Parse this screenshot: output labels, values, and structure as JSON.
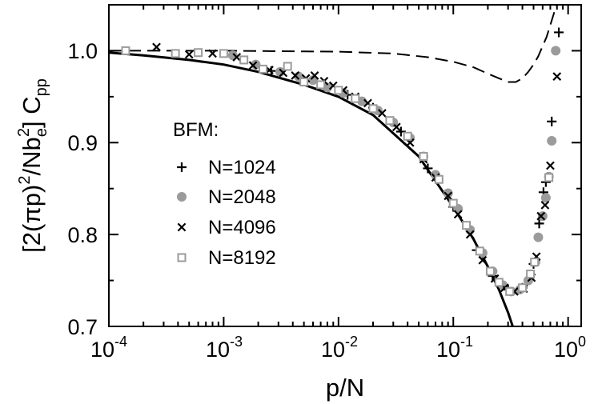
{
  "chart_data": {
    "type": "scatter",
    "xscale": "log",
    "xlim": [
      0.0001,
      1.3
    ],
    "ylim": [
      0.7,
      1.05
    ],
    "xlabel_parts": [
      "p/N"
    ],
    "ylabel": {
      "open": "[2(",
      "pi": "π",
      "p": "p)",
      "sup2a": "2",
      "slash": "/Nb",
      "sube": "e",
      "sup2b": "2",
      "close": "] C",
      "subpp": "pp"
    },
    "xticks": [
      {
        "value": 0.0001,
        "base": "10",
        "exp": "-4"
      },
      {
        "value": 0.001,
        "base": "10",
        "exp": "-3"
      },
      {
        "value": 0.01,
        "base": "10",
        "exp": "-2"
      },
      {
        "value": 0.1,
        "base": "10",
        "exp": "-1"
      },
      {
        "value": 1,
        "base": "10",
        "exp": "0"
      }
    ],
    "yticks": [
      {
        "value": 0.7,
        "label": "0.7"
      },
      {
        "value": 0.8,
        "label": "0.8"
      },
      {
        "value": 0.9,
        "label": "0.9"
      },
      {
        "value": 1.0,
        "label": "1.0"
      }
    ],
    "legend_title": "BFM:",
    "legend_position": "center-left",
    "series": [
      {
        "name": "N=1024",
        "marker": "plus",
        "color": "#000000",
        "points": [
          [
            0.0026,
            0.978
          ],
          [
            0.0045,
            0.972
          ],
          [
            0.0075,
            0.962
          ],
          [
            0.012,
            0.952
          ],
          [
            0.02,
            0.938
          ],
          [
            0.035,
            0.912
          ],
          [
            0.06,
            0.872
          ],
          [
            0.1,
            0.83
          ],
          [
            0.16,
            0.783
          ],
          [
            0.22,
            0.755
          ],
          [
            0.3,
            0.74
          ],
          [
            0.4,
            0.742
          ],
          [
            0.5,
            0.768
          ],
          [
            0.56,
            0.812
          ],
          [
            0.61,
            0.846
          ],
          [
            0.64,
            0.857
          ],
          [
            0.72,
            0.923
          ],
          [
            0.83,
            1.02
          ]
        ]
      },
      {
        "name": "N=2048",
        "marker": "circle",
        "color": "#9b9b9b",
        "points": [
          [
            0.0012,
            0.995
          ],
          [
            0.0019,
            0.985
          ],
          [
            0.0031,
            0.977
          ],
          [
            0.0045,
            0.972
          ],
          [
            0.006,
            0.968
          ],
          [
            0.008,
            0.96
          ],
          [
            0.011,
            0.954
          ],
          [
            0.016,
            0.945
          ],
          [
            0.022,
            0.935
          ],
          [
            0.03,
            0.922
          ],
          [
            0.042,
            0.905
          ],
          [
            0.055,
            0.885
          ],
          [
            0.07,
            0.865
          ],
          [
            0.09,
            0.845
          ],
          [
            0.11,
            0.828
          ],
          [
            0.14,
            0.805
          ],
          [
            0.18,
            0.78
          ],
          [
            0.22,
            0.76
          ],
          [
            0.27,
            0.745
          ],
          [
            0.32,
            0.738
          ],
          [
            0.38,
            0.74
          ],
          [
            0.45,
            0.75
          ],
          [
            0.52,
            0.77
          ],
          [
            0.55,
            0.797
          ],
          [
            0.6,
            0.82
          ],
          [
            0.64,
            0.84
          ],
          [
            0.68,
            0.863
          ],
          [
            0.72,
            0.902
          ],
          [
            0.78,
            1.0
          ]
        ]
      },
      {
        "name": "N=4096",
        "marker": "cross",
        "color": "#000000",
        "points": [
          [
            0.00026,
            1.004
          ],
          [
            0.0005,
            0.996
          ],
          [
            0.0008,
            0.997
          ],
          [
            0.0013,
            0.993
          ],
          [
            0.0018,
            0.984
          ],
          [
            0.0025,
            0.979
          ],
          [
            0.0033,
            0.976
          ],
          [
            0.0042,
            0.973
          ],
          [
            0.0052,
            0.97
          ],
          [
            0.0062,
            0.973
          ],
          [
            0.0075,
            0.967
          ],
          [
            0.009,
            0.962
          ],
          [
            0.011,
            0.957
          ],
          [
            0.014,
            0.95
          ],
          [
            0.018,
            0.943
          ],
          [
            0.024,
            0.932
          ],
          [
            0.032,
            0.917
          ],
          [
            0.042,
            0.9
          ],
          [
            0.055,
            0.882
          ],
          [
            0.07,
            0.862
          ],
          [
            0.09,
            0.842
          ],
          [
            0.11,
            0.822
          ],
          [
            0.14,
            0.8
          ],
          [
            0.18,
            0.772
          ],
          [
            0.23,
            0.752
          ],
          [
            0.28,
            0.742
          ],
          [
            0.34,
            0.738
          ],
          [
            0.41,
            0.741
          ],
          [
            0.48,
            0.753
          ],
          [
            0.53,
            0.776
          ],
          [
            0.58,
            0.82
          ],
          [
            0.63,
            0.832
          ],
          [
            0.7,
            0.875
          ],
          [
            0.8,
            0.972
          ]
        ]
      },
      {
        "name": "N=8192",
        "marker": "square",
        "color": "#9b9b9b",
        "points": [
          [
            0.00014,
            1.0
          ],
          [
            0.00038,
            0.997
          ],
          [
            0.0006,
            0.998
          ],
          [
            0.001,
            0.997
          ],
          [
            0.0015,
            0.99
          ],
          [
            0.0022,
            0.98
          ],
          [
            0.0036,
            0.983
          ],
          [
            0.005,
            0.966
          ],
          [
            0.007,
            0.963
          ],
          [
            0.01,
            0.957
          ],
          [
            0.014,
            0.948
          ],
          [
            0.02,
            0.937
          ],
          [
            0.028,
            0.924
          ],
          [
            0.04,
            0.907
          ],
          [
            0.055,
            0.885
          ],
          [
            0.075,
            0.86
          ],
          [
            0.1,
            0.834
          ],
          [
            0.13,
            0.81
          ],
          [
            0.17,
            0.782
          ],
          [
            0.21,
            0.76
          ],
          [
            0.25,
            0.748
          ],
          [
            0.31,
            0.738
          ],
          [
            0.4,
            0.742
          ],
          [
            0.47,
            0.757
          ],
          [
            0.51,
            0.77
          ],
          [
            0.68,
            0.862
          ]
        ]
      }
    ],
    "curves": [
      {
        "style": "solid",
        "color": "#000000",
        "points": [
          [
            0.0001,
            0.998
          ],
          [
            0.0002,
            0.995
          ],
          [
            0.0005,
            0.99
          ],
          [
            0.001,
            0.985
          ],
          [
            0.002,
            0.977
          ],
          [
            0.005,
            0.963
          ],
          [
            0.01,
            0.95
          ],
          [
            0.02,
            0.93
          ],
          [
            0.05,
            0.885
          ],
          [
            0.1,
            0.83
          ],
          [
            0.15,
            0.795
          ],
          [
            0.2,
            0.765
          ],
          [
            0.25,
            0.74
          ],
          [
            0.3,
            0.715
          ],
          [
            0.35,
            0.69
          ],
          [
            0.38,
            0.67
          ]
        ]
      },
      {
        "style": "dashed",
        "color": "#000000",
        "points": [
          [
            0.0001,
            1.0
          ],
          [
            0.001,
            1.0
          ],
          [
            0.01,
            0.999
          ],
          [
            0.03,
            0.997
          ],
          [
            0.06,
            0.993
          ],
          [
            0.1,
            0.988
          ],
          [
            0.15,
            0.982
          ],
          [
            0.2,
            0.975
          ],
          [
            0.25,
            0.97
          ],
          [
            0.3,
            0.966
          ],
          [
            0.35,
            0.966
          ],
          [
            0.4,
            0.97
          ],
          [
            0.45,
            0.977
          ],
          [
            0.5,
            0.985
          ],
          [
            0.55,
            0.994
          ],
          [
            0.6,
            1.005
          ],
          [
            0.65,
            1.015
          ],
          [
            0.7,
            1.028
          ],
          [
            0.75,
            1.04
          ],
          [
            0.8,
            1.052
          ]
        ]
      }
    ]
  }
}
